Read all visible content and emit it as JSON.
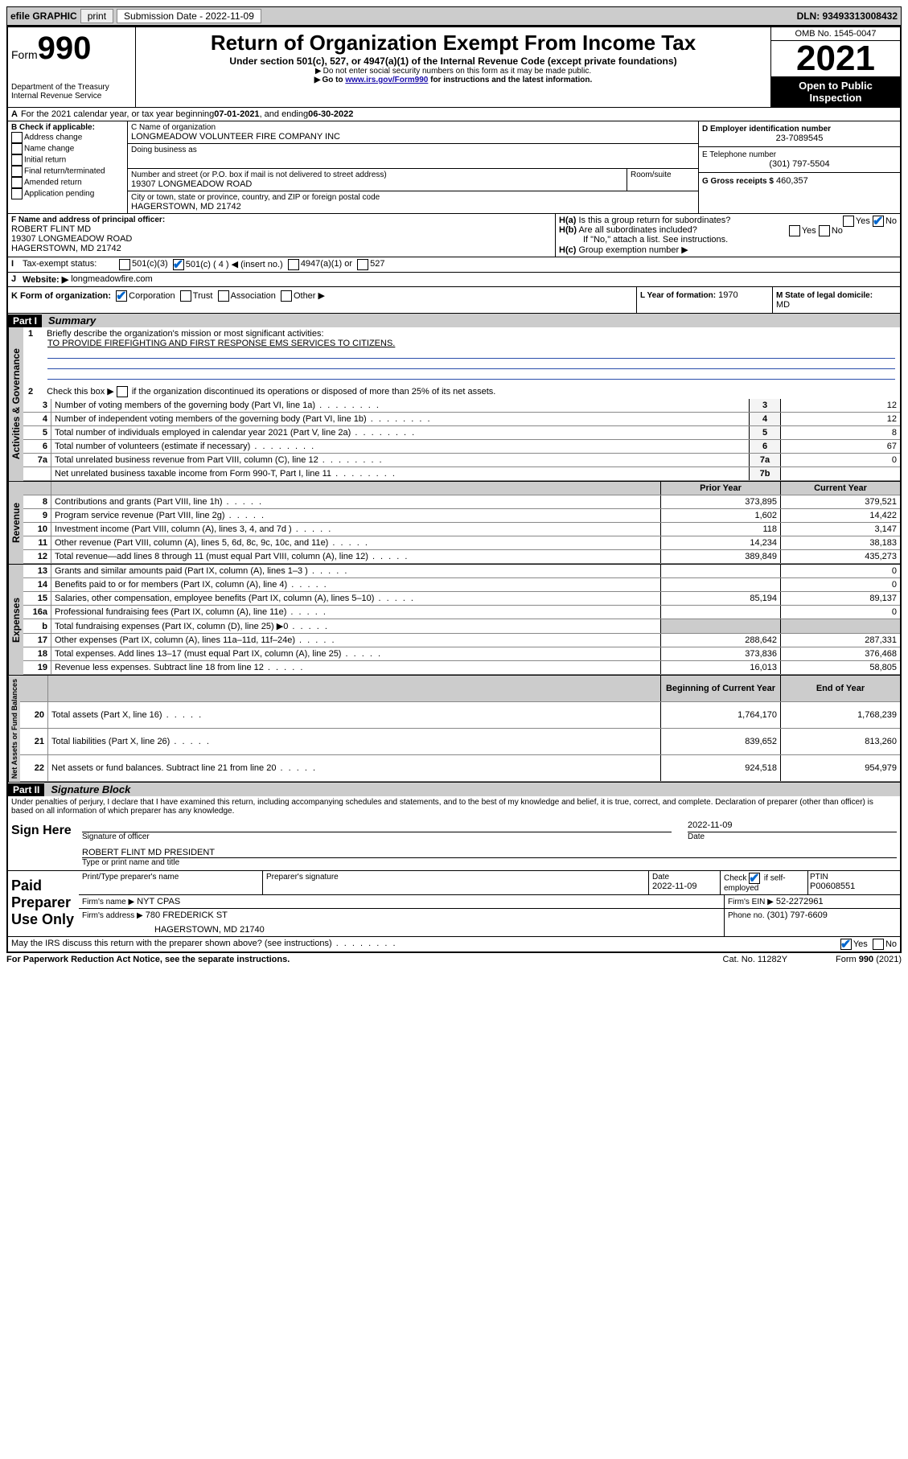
{
  "topbar": {
    "efile": "efile GRAPHIC",
    "print": "print",
    "subdate_label": "Submission Date - 2022-11-09",
    "dln": "DLN: 93493313008432"
  },
  "header": {
    "form_word": "Form",
    "form_num": "990",
    "dept": "Department of the Treasury",
    "irs": "Internal Revenue Service",
    "title": "Return of Organization Exempt From Income Tax",
    "sub1": "Under section 501(c), 527, or 4947(a)(1) of the Internal Revenue Code (except private foundations)",
    "sub2": "Do not enter social security numbers on this form as it may be made public.",
    "sub3_a": "Go to ",
    "sub3_link": "www.irs.gov/Form990",
    "sub3_b": " for instructions and the latest information.",
    "omb": "OMB No. 1545-0047",
    "year": "2021",
    "open": "Open to Public Inspection"
  },
  "A": {
    "text_a": "For the 2021 calendar year, or tax year beginning ",
    "begin": "07-01-2021",
    "text_b": " , and ending ",
    "end": "06-30-2022"
  },
  "B": {
    "label": "B Check if applicable:",
    "opts": [
      "Address change",
      "Name change",
      "Initial return",
      "Final return/terminated",
      "Amended return",
      "Application pending"
    ]
  },
  "C": {
    "name_label": "C Name of organization",
    "name": "LONGMEADOW VOLUNTEER FIRE COMPANY INC",
    "dba_label": "Doing business as",
    "street_label": "Number and street (or P.O. box if mail is not delivered to street address)",
    "room_label": "Room/suite",
    "street": "19307 LONGMEADOW ROAD",
    "city_label": "City or town, state or province, country, and ZIP or foreign postal code",
    "city": "HAGERSTOWN, MD  21742"
  },
  "D": {
    "label": "D Employer identification number",
    "val": "23-7089545"
  },
  "E": {
    "label": "E Telephone number",
    "val": "(301) 797-5504"
  },
  "G": {
    "label": "G Gross receipts $",
    "val": "460,357"
  },
  "F": {
    "label": "F  Name and address of principal officer:",
    "name": "ROBERT FLINT MD",
    "street": "19307 LONGMEADOW ROAD",
    "city": "HAGERSTOWN, MD  21742"
  },
  "H": {
    "a": "Is this a group return for subordinates?",
    "b": "Are all subordinates included?",
    "note": "If \"No,\" attach a list. See instructions.",
    "c": "Group exemption number ▶",
    "ha_label": "H(a)",
    "hb_label": "H(b)",
    "hc_label": "H(c)",
    "yes": "Yes",
    "no": "No"
  },
  "I": {
    "label": "Tax-exempt status:",
    "o1": "501(c)(3)",
    "o2": "501(c) ( 4 ) ◀ (insert no.)",
    "o3": "4947(a)(1) or",
    "o4": "527"
  },
  "J": {
    "label": "Website: ▶",
    "val": "longmeadowfire.com"
  },
  "K": {
    "label": "K Form of organization:",
    "o1": "Corporation",
    "o2": "Trust",
    "o3": "Association",
    "o4": "Other ▶"
  },
  "L": {
    "label": "L Year of formation:",
    "val": "1970"
  },
  "M": {
    "label": "M State of legal domicile:",
    "val": "MD"
  },
  "part1": {
    "tag": "Part I",
    "title": "Summary"
  },
  "summary": {
    "q1": "Briefly describe the organization's mission or most significant activities:",
    "mission": "TO PROVIDE FIREFIGHTING AND FIRST RESPONSE EMS SERVICES TO CITIZENS.",
    "q2": "Check this box ▶",
    "q2b": "if the organization discontinued its operations or disposed of more than 25% of its net assets.",
    "lines_gov": [
      {
        "n": "3",
        "t": "Number of voting members of the governing body (Part VI, line 1a)",
        "b": "3",
        "v": "12"
      },
      {
        "n": "4",
        "t": "Number of independent voting members of the governing body (Part VI, line 1b)",
        "b": "4",
        "v": "12"
      },
      {
        "n": "5",
        "t": "Total number of individuals employed in calendar year 2021 (Part V, line 2a)",
        "b": "5",
        "v": "8"
      },
      {
        "n": "6",
        "t": "Total number of volunteers (estimate if necessary)",
        "b": "6",
        "v": "67"
      },
      {
        "n": "7a",
        "t": "Total unrelated business revenue from Part VIII, column (C), line 12",
        "b": "7a",
        "v": "0"
      },
      {
        "n": "",
        "t": "Net unrelated business taxable income from Form 990-T, Part I, line 11",
        "b": "7b",
        "v": ""
      }
    ],
    "col_prior": "Prior Year",
    "col_curr": "Current Year",
    "rev": [
      {
        "n": "8",
        "t": "Contributions and grants (Part VIII, line 1h)",
        "p": "373,895",
        "c": "379,521"
      },
      {
        "n": "9",
        "t": "Program service revenue (Part VIII, line 2g)",
        "p": "1,602",
        "c": "14,422"
      },
      {
        "n": "10",
        "t": "Investment income (Part VIII, column (A), lines 3, 4, and 7d )",
        "p": "118",
        "c": "3,147"
      },
      {
        "n": "11",
        "t": "Other revenue (Part VIII, column (A), lines 5, 6d, 8c, 9c, 10c, and 11e)",
        "p": "14,234",
        "c": "38,183"
      },
      {
        "n": "12",
        "t": "Total revenue—add lines 8 through 11 (must equal Part VIII, column (A), line 12)",
        "p": "389,849",
        "c": "435,273"
      }
    ],
    "exp": [
      {
        "n": "13",
        "t": "Grants and similar amounts paid (Part IX, column (A), lines 1–3 )",
        "p": "",
        "c": "0"
      },
      {
        "n": "14",
        "t": "Benefits paid to or for members (Part IX, column (A), line 4)",
        "p": "",
        "c": "0"
      },
      {
        "n": "15",
        "t": "Salaries, other compensation, employee benefits (Part IX, column (A), lines 5–10)",
        "p": "85,194",
        "c": "89,137"
      },
      {
        "n": "16a",
        "t": "Professional fundraising fees (Part IX, column (A), line 11e)",
        "p": "",
        "c": "0"
      },
      {
        "n": "b",
        "t": "Total fundraising expenses (Part IX, column (D), line 25) ▶0",
        "p": "__shade__",
        "c": "__shade__"
      },
      {
        "n": "17",
        "t": "Other expenses (Part IX, column (A), lines 11a–11d, 11f–24e)",
        "p": "288,642",
        "c": "287,331"
      },
      {
        "n": "18",
        "t": "Total expenses. Add lines 13–17 (must equal Part IX, column (A), line 25)",
        "p": "373,836",
        "c": "376,468"
      },
      {
        "n": "19",
        "t": "Revenue less expenses. Subtract line 18 from line 12",
        "p": "16,013",
        "c": "58,805"
      }
    ],
    "col_begin": "Beginning of Current Year",
    "col_end": "End of Year",
    "net": [
      {
        "n": "20",
        "t": "Total assets (Part X, line 16)",
        "p": "1,764,170",
        "c": "1,768,239"
      },
      {
        "n": "21",
        "t": "Total liabilities (Part X, line 26)",
        "p": "839,652",
        "c": "813,260"
      },
      {
        "n": "22",
        "t": "Net assets or fund balances. Subtract line 21 from line 20",
        "p": "924,518",
        "c": "954,979"
      }
    ],
    "vlabels": {
      "gov": "Activities & Governance",
      "rev": "Revenue",
      "exp": "Expenses",
      "net": "Net Assets or Fund Balances"
    }
  },
  "part2": {
    "tag": "Part II",
    "title": "Signature Block"
  },
  "sig": {
    "jurat": "Under penalties of perjury, I declare that I have examined this return, including accompanying schedules and statements, and to the best of my knowledge and belief, it is true, correct, and complete. Declaration of preparer (other than officer) is based on all information of which preparer has any knowledge.",
    "sign_here": "Sign Here",
    "sig_officer": "Signature of officer",
    "date": "Date",
    "sig_date": "2022-11-09",
    "name_title": "ROBERT FLINT MD  PRESIDENT",
    "type_name": "Type or print name and title",
    "paid": "Paid Preparer Use Only",
    "pt_name": "Print/Type preparer's name",
    "pt_sig": "Preparer's signature",
    "pt_date_l": "Date",
    "pt_date": "2022-11-09",
    "pt_check": "Check",
    "pt_if": "if self-employed",
    "ptin_l": "PTIN",
    "ptin": "P00608551",
    "firm_name_l": "Firm's name    ▶",
    "firm_name": "NYT CPAS",
    "firm_ein_l": "Firm's EIN ▶",
    "firm_ein": "52-2272961",
    "firm_addr_l": "Firm's address ▶",
    "firm_addr1": "780 FREDERICK ST",
    "firm_addr2": "HAGERSTOWN, MD  21740",
    "phone_l": "Phone no.",
    "phone": "(301) 797-6609",
    "discuss": "May the IRS discuss this return with the preparer shown above? (see instructions)"
  },
  "footer": {
    "pra": "For Paperwork Reduction Act Notice, see the separate instructions.",
    "cat": "Cat. No. 11282Y",
    "form": "Form 990 (2021)"
  },
  "colors": {
    "link": "#1a0dab",
    "check": "#0066cc",
    "shade": "#cccccc"
  }
}
